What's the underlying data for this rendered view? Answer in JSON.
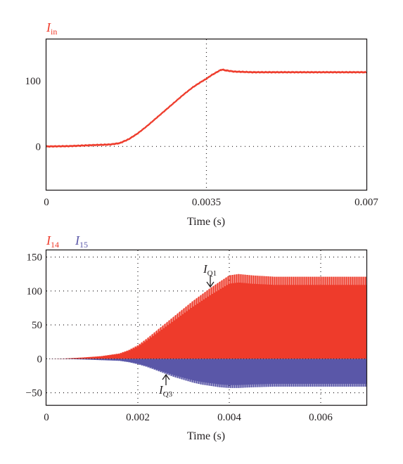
{
  "colors": {
    "red": "#ee3b2b",
    "blue": "#5a57a8",
    "axis": "#231f20"
  },
  "chart_data": [
    {
      "type": "line",
      "series": [
        {
          "name": "I_in",
          "color": "#ee3b2b",
          "x": [
            0,
            0.0005,
            0.001,
            0.0014,
            0.0016,
            0.0018,
            0.002,
            0.0022,
            0.0024,
            0.0026,
            0.0028,
            0.003,
            0.0032,
            0.0034,
            0.0035,
            0.0036,
            0.0037,
            0.0038,
            0.00385,
            0.0039,
            0.004,
            0.0041,
            0.0043,
            0.0045,
            0.005,
            0.0055,
            0.006,
            0.0065,
            0.007
          ],
          "values": [
            0,
            0.5,
            2,
            3,
            5,
            11,
            20,
            31,
            43,
            55,
            67,
            79,
            90,
            99,
            103,
            108,
            112,
            116,
            117,
            116,
            115,
            114,
            113.5,
            113,
            113,
            113,
            113,
            113,
            113
          ]
        }
      ],
      "ylabel_main": "I",
      "ylabel_sub": "in",
      "xlabel": "Time (s)",
      "xlim": [
        0,
        0.007
      ],
      "ylim": [
        -66,
        163
      ],
      "xticks": [
        "0",
        "0.0035",
        "0.007"
      ],
      "xtick_values": [
        0,
        0.0035,
        0.007
      ],
      "yticks": [
        "0",
        "100"
      ],
      "ytick_values": [
        0,
        100
      ],
      "grid": "dotted at x=0.0035 and y=0"
    },
    {
      "type": "area",
      "series": [
        {
          "name": "I_14",
          "color": "#ee3b2b",
          "x": [
            0,
            0.0004,
            0.0008,
            0.0012,
            0.0016,
            0.0018,
            0.002,
            0.0022,
            0.0024,
            0.0026,
            0.0028,
            0.003,
            0.0032,
            0.0034,
            0.0036,
            0.0038,
            0.004,
            0.0042,
            0.0045,
            0.005,
            0.0055,
            0.006,
            0.0065,
            0.007
          ],
          "values": [
            0,
            0.5,
            2,
            4,
            8,
            13,
            20,
            30,
            41,
            52,
            63,
            74,
            85,
            95,
            105,
            114,
            123,
            125,
            123,
            121,
            121,
            121,
            121,
            121
          ]
        },
        {
          "name": "I_15",
          "color": "#5a57a8",
          "x": [
            0,
            0.0004,
            0.0008,
            0.0012,
            0.0016,
            0.0018,
            0.002,
            0.0022,
            0.0024,
            0.0026,
            0.0028,
            0.003,
            0.0032,
            0.0034,
            0.0036,
            0.0038,
            0.004,
            0.0042,
            0.0045,
            0.005,
            0.0055,
            0.006,
            0.0065,
            0.007
          ],
          "values": [
            0,
            -0.3,
            -1,
            -2,
            -3,
            -5,
            -8,
            -12,
            -17,
            -22,
            -27,
            -31,
            -35,
            -38,
            -40,
            -42,
            -43,
            -43,
            -42,
            -41,
            -41,
            -41,
            -41,
            -41
          ]
        }
      ],
      "ylabel_a_main": "I",
      "ylabel_a_sub": "14",
      "ylabel_b_main": "I",
      "ylabel_b_sub": "15",
      "xlabel": "Time (s)",
      "xlim": [
        0,
        0.007
      ],
      "ylim": [
        -68,
        160
      ],
      "xticks": [
        "0",
        "0.002",
        "0.004",
        "0.006"
      ],
      "xtick_values": [
        0,
        0.002,
        0.004,
        0.006
      ],
      "yticks": [
        "−50",
        "0",
        "50",
        "100",
        "150"
      ],
      "ytick_values": [
        -50,
        0,
        50,
        100,
        150
      ],
      "grid": "dotted",
      "annotations": [
        {
          "main": "I",
          "sub": "Q1"
        },
        {
          "main": "I",
          "sub": "Q3"
        }
      ]
    }
  ]
}
